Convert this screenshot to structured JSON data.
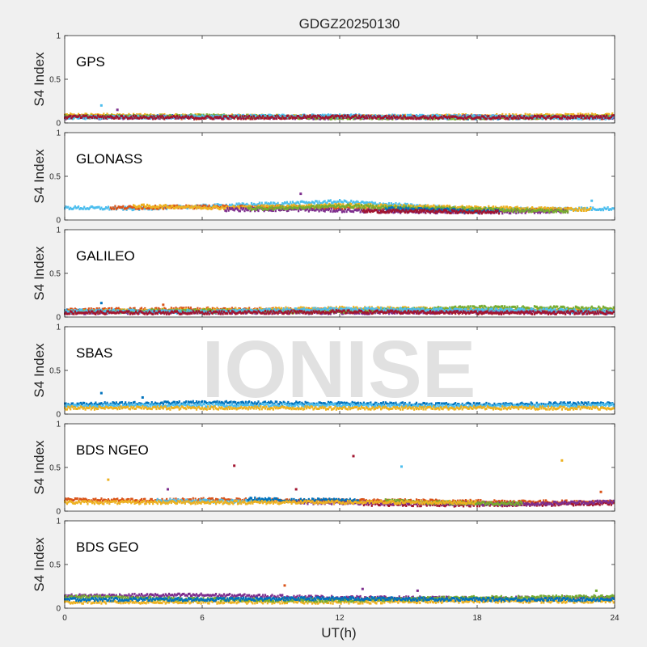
{
  "chart_data": {
    "type": "scatter",
    "title": "GDGZ20250130",
    "xlabel": "UT(h)",
    "ylabel": "S4 Index",
    "xlim": [
      0,
      24
    ],
    "ylim": [
      0,
      1
    ],
    "xticks": [
      "0",
      "6",
      "12",
      "18",
      "24"
    ],
    "yticks": [
      "0",
      "0.5",
      "1"
    ],
    "watermark": "IONISE",
    "grid": false,
    "palette": [
      "#0072BD",
      "#D95319",
      "#EDB120",
      "#7E2F8E",
      "#77AC30",
      "#4DBEEE",
      "#A2142F"
    ],
    "panels": [
      {
        "label": "GPS",
        "series": [
          {
            "color": "#0072BD",
            "baseline": [
              [
                0,
                0.07
              ],
              [
                6,
                0.07
              ],
              [
                12,
                0.07
              ],
              [
                18,
                0.06
              ],
              [
                24,
                0.07
              ]
            ]
          },
          {
            "color": "#D95319",
            "baseline": [
              [
                0,
                0.08
              ],
              [
                6,
                0.06
              ],
              [
                12,
                0.07
              ],
              [
                18,
                0.07
              ],
              [
                24,
                0.06
              ]
            ]
          },
          {
            "color": "#EDB120",
            "baseline": [
              [
                0,
                0.09
              ],
              [
                6,
                0.08
              ],
              [
                12,
                0.07
              ],
              [
                18,
                0.08
              ],
              [
                24,
                0.09
              ]
            ]
          },
          {
            "color": "#7E2F8E",
            "baseline": [
              [
                0,
                0.06
              ],
              [
                6,
                0.07
              ],
              [
                12,
                0.06
              ],
              [
                18,
                0.07
              ],
              [
                24,
                0.06
              ]
            ]
          },
          {
            "color": "#77AC30",
            "baseline": [
              [
                0,
                0.07
              ],
              [
                6,
                0.08
              ],
              [
                12,
                0.06
              ],
              [
                18,
                0.06
              ],
              [
                24,
                0.07
              ]
            ]
          },
          {
            "color": "#4DBEEE",
            "baseline": [
              [
                0,
                0.06
              ],
              [
                6,
                0.07
              ],
              [
                12,
                0.08
              ],
              [
                18,
                0.07
              ],
              [
                24,
                0.06
              ]
            ]
          },
          {
            "color": "#A2142F",
            "baseline": [
              [
                0,
                0.07
              ],
              [
                6,
                0.06
              ],
              [
                12,
                0.07
              ],
              [
                18,
                0.06
              ],
              [
                24,
                0.07
              ]
            ]
          }
        ],
        "outliers": [
          [
            1.6,
            0.2,
            "#4DBEEE"
          ],
          [
            2.3,
            0.15,
            "#7E2F8E"
          ]
        ]
      },
      {
        "label": "GLONASS",
        "series": [
          {
            "color": "#4DBEEE",
            "baseline": [
              [
                0,
                0.14
              ],
              [
                3,
                0.13
              ],
              [
                12,
                0.21
              ],
              [
                18,
                0.12
              ],
              [
                24,
                0.13
              ]
            ]
          },
          {
            "color": "#D95319",
            "baseline": [
              [
                2,
                0.14
              ],
              [
                6,
                0.15
              ],
              [
                12,
                0.14
              ],
              [
                18,
                0.1
              ],
              [
                22,
                0.12
              ]
            ]
          },
          {
            "color": "#EDB120",
            "baseline": [
              [
                3,
                0.16
              ],
              [
                7,
                0.14
              ],
              [
                12,
                0.17
              ],
              [
                20,
                0.13
              ],
              [
                23,
                0.12
              ]
            ]
          },
          {
            "color": "#7E2F8E",
            "baseline": [
              [
                7,
                0.12
              ],
              [
                10,
                0.12
              ],
              [
                14,
                0.1
              ],
              [
                18,
                0.09
              ],
              [
                22,
                0.1
              ]
            ]
          },
          {
            "color": "#77AC30",
            "baseline": [
              [
                8,
                0.13
              ],
              [
                10,
                0.14
              ],
              [
                12,
                0.16
              ],
              [
                20,
                0.11
              ],
              [
                22,
                0.1
              ]
            ]
          },
          {
            "color": "#0072BD",
            "baseline": [
              [
                14,
                0.13
              ],
              [
                17,
                0.11
              ],
              [
                18,
                0.1
              ],
              [
                19,
                0.1
              ]
            ]
          },
          {
            "color": "#A2142F",
            "baseline": [
              [
                13,
                0.1
              ],
              [
                16,
                0.1
              ],
              [
                18,
                0.09
              ],
              [
                19,
                0.09
              ]
            ]
          }
        ],
        "outliers": [
          [
            10.3,
            0.3,
            "#7E2F8E"
          ],
          [
            23,
            0.22,
            "#4DBEEE"
          ]
        ]
      },
      {
        "label": "GALILEO",
        "series": [
          {
            "color": "#0072BD",
            "baseline": [
              [
                0,
                0.07
              ],
              [
                6,
                0.06
              ],
              [
                12,
                0.08
              ],
              [
                18,
                0.07
              ],
              [
                24,
                0.06
              ]
            ]
          },
          {
            "color": "#D95319",
            "baseline": [
              [
                0,
                0.08
              ],
              [
                6,
                0.09
              ],
              [
                12,
                0.08
              ],
              [
                18,
                0.06
              ],
              [
                24,
                0.07
              ]
            ]
          },
          {
            "color": "#EDB120",
            "baseline": [
              [
                0,
                0.06
              ],
              [
                6,
                0.08
              ],
              [
                12,
                0.1
              ],
              [
                18,
                0.09
              ],
              [
                24,
                0.08
              ]
            ]
          },
          {
            "color": "#7E2F8E",
            "baseline": [
              [
                0,
                0.05
              ],
              [
                6,
                0.06
              ],
              [
                12,
                0.05
              ],
              [
                18,
                0.06
              ],
              [
                24,
                0.05
              ]
            ]
          },
          {
            "color": "#77AC30",
            "baseline": [
              [
                0,
                0.06
              ],
              [
                6,
                0.07
              ],
              [
                12,
                0.06
              ],
              [
                18,
                0.11
              ],
              [
                24,
                0.1
              ]
            ]
          },
          {
            "color": "#4DBEEE",
            "baseline": [
              [
                0,
                0.07
              ],
              [
                6,
                0.06
              ],
              [
                12,
                0.09
              ],
              [
                18,
                0.08
              ],
              [
                24,
                0.07
              ]
            ]
          },
          {
            "color": "#A2142F",
            "baseline": [
              [
                0,
                0.05
              ],
              [
                6,
                0.05
              ],
              [
                12,
                0.06
              ],
              [
                18,
                0.05
              ],
              [
                24,
                0.05
              ]
            ]
          }
        ],
        "outliers": [
          [
            1.6,
            0.16,
            "#0072BD"
          ],
          [
            4.3,
            0.14,
            "#D95319"
          ]
        ]
      },
      {
        "label": "SBAS",
        "series": [
          {
            "color": "#0072BD",
            "baseline": [
              [
                0,
                0.11
              ],
              [
                6,
                0.13
              ],
              [
                12,
                0.12
              ],
              [
                18,
                0.11
              ],
              [
                24,
                0.12
              ]
            ]
          },
          {
            "color": "#4DBEEE",
            "baseline": [
              [
                0,
                0.09
              ],
              [
                6,
                0.1
              ],
              [
                12,
                0.1
              ],
              [
                18,
                0.09
              ],
              [
                24,
                0.1
              ]
            ]
          },
          {
            "color": "#EDB120",
            "baseline": [
              [
                0,
                0.07
              ],
              [
                6,
                0.07
              ],
              [
                12,
                0.07
              ],
              [
                18,
                0.07
              ],
              [
                24,
                0.07
              ]
            ]
          }
        ],
        "outliers": [
          [
            1.6,
            0.24,
            "#0072BD"
          ],
          [
            3.4,
            0.19,
            "#0072BD"
          ]
        ]
      },
      {
        "label": "BDS NGEO",
        "series": [
          {
            "color": "#D95319",
            "baseline": [
              [
                0,
                0.13
              ],
              [
                4,
                0.12
              ],
              [
                6,
                0.13
              ],
              [
                10,
                0.12
              ],
              [
                13,
                0.12
              ],
              [
                24,
                0.1
              ]
            ]
          },
          {
            "color": "#4DBEEE",
            "baseline": [
              [
                4,
                0.12
              ],
              [
                7,
                0.11
              ],
              [
                9,
                0.12
              ]
            ]
          },
          {
            "color": "#0072BD",
            "baseline": [
              [
                8,
                0.14
              ],
              [
                10,
                0.12
              ],
              [
                12,
                0.13
              ],
              [
                13,
                0.11
              ]
            ]
          },
          {
            "color": "#A2142F",
            "baseline": [
              [
                13,
                0.08
              ],
              [
                18,
                0.07
              ],
              [
                22,
                0.08
              ],
              [
                24,
                0.09
              ]
            ]
          },
          {
            "color": "#7E2F8E",
            "baseline": [
              [
                10,
                0.1
              ],
              [
                16,
                0.09
              ],
              [
                20,
                0.08
              ],
              [
                24,
                0.11
              ]
            ]
          },
          {
            "color": "#77AC30",
            "baseline": [
              [
                14,
                0.12
              ],
              [
                16,
                0.1
              ],
              [
                18,
                0.09
              ],
              [
                20,
                0.09
              ]
            ]
          },
          {
            "color": "#EDB120",
            "baseline": [
              [
                0,
                0.1
              ],
              [
                6,
                0.1
              ],
              [
                12,
                0.1
              ],
              [
                18,
                0.1
              ]
            ]
          }
        ],
        "outliers": [
          [
            1.9,
            0.36,
            "#EDB120"
          ],
          [
            4.5,
            0.25,
            "#7E2F8E"
          ],
          [
            7.4,
            0.52,
            "#A2142F"
          ],
          [
            12.6,
            0.63,
            "#A2142F"
          ],
          [
            14.7,
            0.51,
            "#4DBEEE"
          ],
          [
            21.7,
            0.58,
            "#EDB120"
          ],
          [
            10.1,
            0.25,
            "#A2142F"
          ],
          [
            23.4,
            0.22,
            "#D95319"
          ]
        ]
      },
      {
        "label": "BDS GEO",
        "series": [
          {
            "color": "#7E2F8E",
            "baseline": [
              [
                0,
                0.14
              ],
              [
                6,
                0.15
              ],
              [
                12,
                0.12
              ],
              [
                18,
                0.11
              ],
              [
                24,
                0.12
              ]
            ]
          },
          {
            "color": "#EDB120",
            "baseline": [
              [
                0,
                0.07
              ],
              [
                6,
                0.07
              ],
              [
                12,
                0.07
              ],
              [
                18,
                0.08
              ],
              [
                24,
                0.08
              ]
            ]
          },
          {
            "color": "#77AC30",
            "baseline": [
              [
                0,
                0.13
              ],
              [
                6,
                0.1
              ],
              [
                12,
                0.09
              ],
              [
                18,
                0.12
              ],
              [
                24,
                0.13
              ]
            ]
          },
          {
            "color": "#0072BD",
            "baseline": [
              [
                0,
                0.1
              ],
              [
                6,
                0.1
              ],
              [
                12,
                0.11
              ],
              [
                18,
                0.1
              ],
              [
                24,
                0.1
              ]
            ]
          }
        ],
        "outliers": [
          [
            9.6,
            0.26,
            "#D95319"
          ],
          [
            13,
            0.22,
            "#7E2F8E"
          ],
          [
            15.4,
            0.2,
            "#7E2F8E"
          ],
          [
            23.2,
            0.2,
            "#77AC30"
          ]
        ]
      }
    ]
  }
}
